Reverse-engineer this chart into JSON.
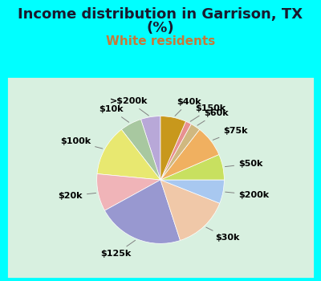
{
  "title_line1": "Income distribution in Garrison, TX",
  "title_line2": "(%)",
  "subtitle": "White residents",
  "bg_color": "#00FFFF",
  "chart_bg": "#ffffff",
  "chart_border": "#00FFFF",
  "title_color": "#1a1a2e",
  "subtitle_color": "#c87838",
  "title_fontsize": 13,
  "subtitle_fontsize": 11,
  "label_fontsize": 8,
  "labels": [
    ">$200k",
    "$10k",
    "$100k",
    "$20k",
    "$125k",
    "$30k",
    "$200k",
    "$50k",
    "$75k",
    "$60k",
    "$150k",
    "$40k"
  ],
  "values": [
    5.0,
    5.5,
    13.0,
    9.5,
    22.0,
    14.0,
    6.0,
    6.5,
    8.0,
    2.5,
    1.5,
    6.5
  ],
  "colors": [
    "#b8a8d8",
    "#a8c8a0",
    "#e8e870",
    "#f0b4b8",
    "#9898d0",
    "#f0c8a8",
    "#a8c8f0",
    "#c8e060",
    "#f0b060",
    "#d0b880",
    "#e89090",
    "#c8981c"
  ],
  "startangle": 90,
  "labeldistance": 1.25,
  "connector_color": "#808080",
  "connector_lw": 0.7
}
